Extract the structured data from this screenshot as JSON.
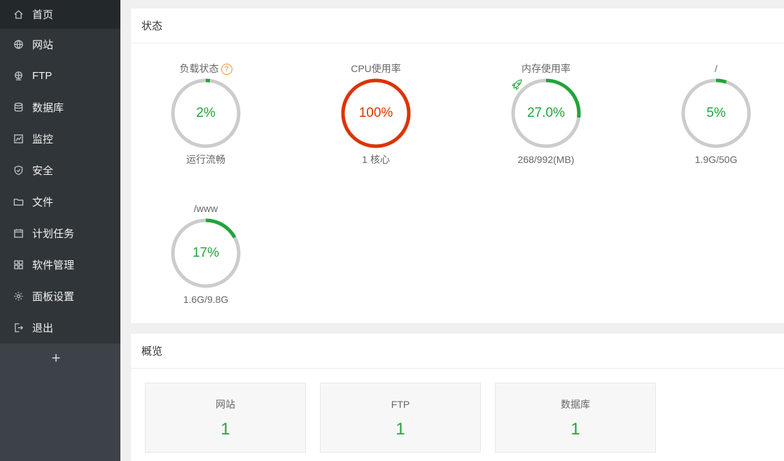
{
  "sidebar": {
    "items": [
      {
        "label": "首页",
        "icon": "home-icon"
      },
      {
        "label": "网站",
        "icon": "globe-icon"
      },
      {
        "label": "FTP",
        "icon": "ftp-icon"
      },
      {
        "label": "数据库",
        "icon": "database-icon"
      },
      {
        "label": "监控",
        "icon": "monitor-icon"
      },
      {
        "label": "安全",
        "icon": "shield-icon"
      },
      {
        "label": "文件",
        "icon": "folder-icon"
      },
      {
        "label": "计划任务",
        "icon": "calendar-icon"
      },
      {
        "label": "软件管理",
        "icon": "grid-icon"
      },
      {
        "label": "面板设置",
        "icon": "gear-icon"
      },
      {
        "label": "退出",
        "icon": "logout-icon"
      }
    ],
    "add_label": "+"
  },
  "status": {
    "title": "状态",
    "gauges": [
      {
        "title": "负载状态",
        "value": "2%",
        "percent": 2,
        "sub": "运行流畅",
        "color": "#20a53a",
        "help": "?"
      },
      {
        "title": "CPU使用率",
        "value": "100%",
        "percent": 100,
        "sub": "1 核心",
        "color": "#dd3300"
      },
      {
        "title": "内存使用率",
        "value": "27.0%",
        "percent": 27,
        "sub": "268/992(MB)",
        "color": "#20a53a"
      },
      {
        "title": "/",
        "value": "5%",
        "percent": 5,
        "sub": "1.9G/50G",
        "color": "#20a53a"
      },
      {
        "title": "/www",
        "value": "17%",
        "percent": 17,
        "sub": "1.6G/9.8G",
        "color": "#20a53a"
      }
    ]
  },
  "overview": {
    "title": "概览",
    "cards": [
      {
        "label": "网站",
        "value": "1"
      },
      {
        "label": "FTP",
        "value": "1"
      },
      {
        "label": "数据库",
        "value": "1"
      }
    ]
  },
  "colors": {
    "sidebar_bg": "#2f3538",
    "accent_green": "#20a53a",
    "alert_red": "#dd3300",
    "track_gray": "#cccccc"
  }
}
